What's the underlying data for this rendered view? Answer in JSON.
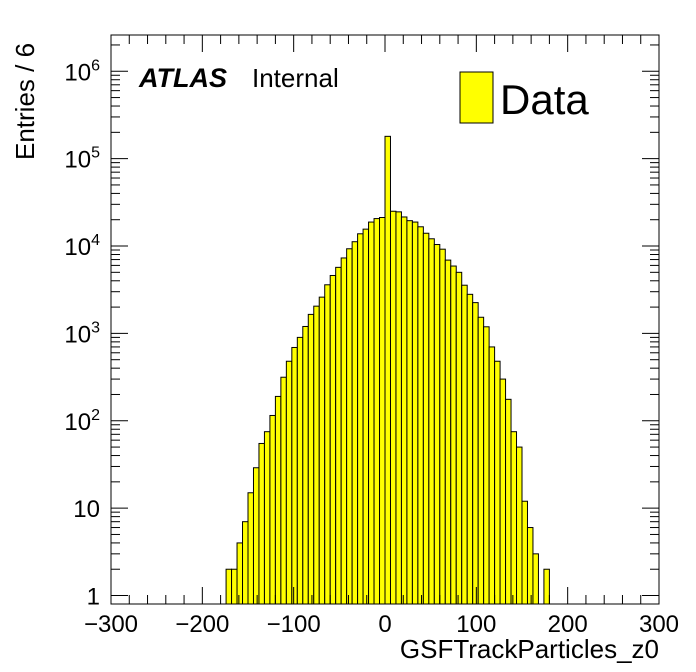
{
  "chart_data": {
    "type": "bar",
    "xlabel": "GSFTrackParticles_z0",
    "ylabel": "Entries / 6",
    "xlim": [
      -300,
      300
    ],
    "ylim": [
      0.8,
      2600000
    ],
    "yscale": "log",
    "bin_width": 6,
    "fill_color": "#ffff00",
    "x_ticks": [
      -300,
      -200,
      -100,
      0,
      100,
      200,
      300
    ],
    "x_tick_labels": [
      "−300",
      "−200",
      "−100",
      "0",
      "100",
      "200",
      "300"
    ],
    "y_ticks": [
      {
        "value": 1,
        "base": "1",
        "exp": ""
      },
      {
        "value": 10,
        "base": "10",
        "exp": ""
      },
      {
        "value": 100,
        "base": "10",
        "exp": "2"
      },
      {
        "value": 1000,
        "base": "10",
        "exp": "3"
      },
      {
        "value": 10000,
        "base": "10",
        "exp": "4"
      },
      {
        "value": 100000,
        "base": "10",
        "exp": "5"
      },
      {
        "value": 1000000,
        "base": "10",
        "exp": "6"
      }
    ],
    "series": [
      {
        "name": "Data",
        "bin_low_edges": [
          -174,
          -168,
          -162,
          -156,
          -150,
          -144,
          -138,
          -132,
          -126,
          -120,
          -114,
          -108,
          -102,
          -96,
          -90,
          -84,
          -78,
          -72,
          -66,
          -60,
          -54,
          -48,
          -42,
          -36,
          -30,
          -24,
          -18,
          -12,
          -6,
          0,
          6,
          12,
          18,
          24,
          30,
          36,
          42,
          48,
          54,
          60,
          66,
          72,
          78,
          84,
          90,
          96,
          102,
          108,
          114,
          120,
          126,
          132,
          138,
          144,
          150,
          156,
          162,
          168,
          174
        ],
        "values": [
          2,
          2,
          4,
          7,
          15,
          29,
          55,
          75,
          115,
          190,
          315,
          480,
          690,
          900,
          1200,
          1650,
          2050,
          2600,
          3600,
          4600,
          5700,
          7300,
          9300,
          11200,
          13800,
          15600,
          18800,
          20600,
          21200,
          25000,
          25000,
          24600,
          21500,
          19500,
          18800,
          16600,
          14000,
          12100,
          10400,
          9200,
          6900,
          5900,
          5000,
          3560,
          2800,
          2250,
          1530,
          1190,
          700,
          480,
          300,
          176,
          75,
          50,
          12,
          6,
          3,
          0,
          2
        ]
      }
    ],
    "spike": {
      "bin_low_edge": 0,
      "value": 180000
    }
  },
  "annotations": {
    "atlas": "ATLAS",
    "status": "Internal",
    "legend_label": "Data"
  }
}
